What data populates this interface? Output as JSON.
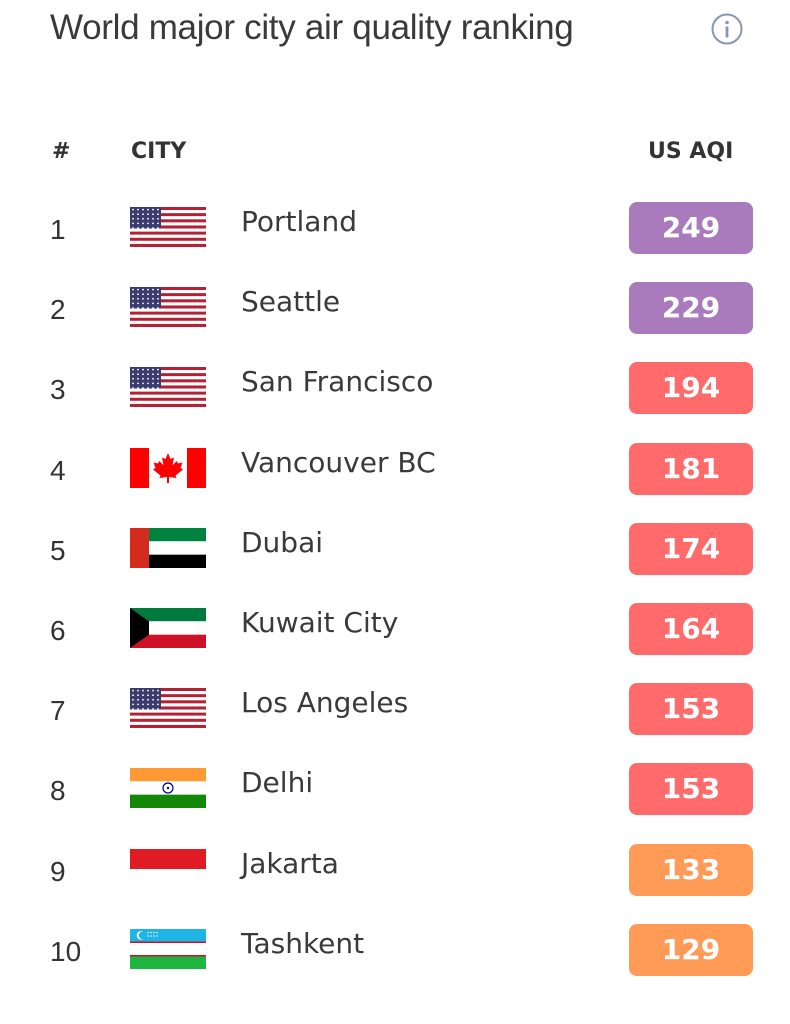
{
  "title": "World major city air quality ranking",
  "info_icon": "info-icon",
  "headers": {
    "rank": "#",
    "city": "CITY",
    "aqi": "US AQI"
  },
  "colors": {
    "very_unhealthy": "#a97abc",
    "unhealthy": "#ff6a6a",
    "unhealthy_sensitive": "#ff9b57"
  },
  "rows": [
    {
      "rank": "1",
      "flag": "us-flag-icon",
      "city": "Portland",
      "aqi": "249",
      "color": "#a97abc"
    },
    {
      "rank": "2",
      "flag": "us-flag-icon",
      "city": "Seattle",
      "aqi": "229",
      "color": "#a97abc"
    },
    {
      "rank": "3",
      "flag": "us-flag-icon",
      "city": "San Francisco",
      "aqi": "194",
      "color": "#ff6a6a"
    },
    {
      "rank": "4",
      "flag": "canada-flag-icon",
      "city": "Vancouver BC",
      "aqi": "181",
      "color": "#ff6a6a"
    },
    {
      "rank": "5",
      "flag": "uae-flag-icon",
      "city": "Dubai",
      "aqi": "174",
      "color": "#ff6a6a"
    },
    {
      "rank": "6",
      "flag": "kuwait-flag-icon",
      "city": "Kuwait City",
      "aqi": "164",
      "color": "#ff6a6a"
    },
    {
      "rank": "7",
      "flag": "us-flag-icon",
      "city": "Los Angeles",
      "aqi": "153",
      "color": "#ff6a6a"
    },
    {
      "rank": "8",
      "flag": "india-flag-icon",
      "city": "Delhi",
      "aqi": "153",
      "color": "#ff6a6a"
    },
    {
      "rank": "9",
      "flag": "indonesia-flag-icon",
      "city": "Jakarta",
      "aqi": "133",
      "color": "#ff9b57"
    },
    {
      "rank": "10",
      "flag": "uzbekistan-flag-icon",
      "city": "Tashkent",
      "aqi": "129",
      "color": "#ff9b57"
    }
  ]
}
